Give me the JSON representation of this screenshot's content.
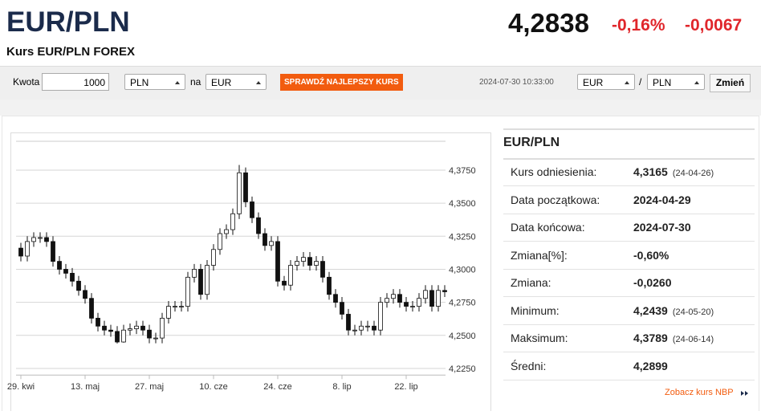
{
  "header": {
    "title": "EUR/PLN",
    "subtitle": "Kurs EUR/PLN FOREX",
    "price": "4,2838",
    "change_pct": "-0,16%",
    "change": "-0,0067"
  },
  "form": {
    "amount_label": "Kwota",
    "amount": "1000",
    "from": "PLN",
    "to_label": "na",
    "to": "EUR",
    "button": "SPRAWDŹ NAJLEPSZY KURS",
    "timestamp": "2024-07-30 10:33:00",
    "pair_base": "EUR",
    "pair_sep": "/",
    "pair_quote": "PLN",
    "change_button": "Zmień"
  },
  "stats": {
    "title": "EUR/PLN",
    "rows": [
      {
        "label": "Kurs odniesienia:",
        "value": "4,3165",
        "date": "(24-04-26)"
      },
      {
        "label": "Data początkowa:",
        "value": "2024-04-29"
      },
      {
        "label": "Data końcowa:",
        "value": "2024-07-30"
      },
      {
        "label": "Zmiana[%]:",
        "value": "-0,60%"
      },
      {
        "label": "Zmiana:",
        "value": "-0,0260"
      },
      {
        "label": "Minimum:",
        "value": "4,2439",
        "date": "(24-05-20)"
      },
      {
        "label": "Maksimum:",
        "value": "4,3789",
        "date": "(24-06-14)"
      },
      {
        "label": "Średni:",
        "value": "4,2899"
      }
    ],
    "link": "Zobacz kurs NBP"
  },
  "chart_data": {
    "type": "candlestick",
    "categories": [
      "29. kwi",
      null,
      null,
      null,
      null,
      null,
      null,
      null,
      null,
      null,
      "13. maj",
      null,
      null,
      null,
      null,
      null,
      null,
      null,
      null,
      null,
      "27. maj",
      null,
      null,
      null,
      null,
      null,
      null,
      null,
      null,
      null,
      "10. cze",
      null,
      null,
      null,
      null,
      null,
      null,
      null,
      null,
      null,
      "24. cze",
      null,
      null,
      null,
      null,
      null,
      null,
      null,
      null,
      null,
      "8. lip",
      null,
      null,
      null,
      null,
      null,
      null,
      null,
      null,
      null,
      "22. lip",
      null,
      null,
      null,
      null,
      null,
      null
    ],
    "open": [
      4.316,
      4.31,
      4.321,
      4.324,
      4.324,
      4.321,
      4.306,
      4.3,
      4.297,
      4.291,
      4.284,
      4.278,
      4.263,
      4.257,
      4.254,
      4.253,
      4.245,
      4.254,
      4.255,
      4.257,
      4.254,
      4.248,
      4.248,
      4.263,
      4.272,
      4.272,
      4.272,
      4.294,
      4.3,
      4.281,
      4.303,
      4.315,
      4.327,
      4.33,
      4.342,
      4.373,
      4.351,
      4.339,
      4.327,
      4.318,
      4.321,
      4.291,
      4.288,
      4.303,
      4.306,
      4.309,
      4.303,
      4.306,
      4.294,
      4.281,
      4.275,
      4.266,
      4.254,
      4.254,
      4.257,
      4.257,
      4.254,
      4.275,
      4.278,
      4.281,
      4.275,
      4.272,
      4.272,
      4.278,
      4.284,
      4.272,
      4.284
    ],
    "high": [
      4.32,
      4.325,
      4.328,
      4.328,
      4.328,
      4.325,
      4.31,
      4.304,
      4.301,
      4.295,
      4.288,
      4.282,
      4.267,
      4.261,
      4.258,
      4.257,
      4.258,
      4.259,
      4.261,
      4.261,
      4.258,
      4.252,
      4.267,
      4.276,
      4.276,
      4.276,
      4.298,
      4.304,
      4.304,
      4.307,
      4.319,
      4.331,
      4.334,
      4.346,
      4.3789,
      4.377,
      4.355,
      4.343,
      4.331,
      4.325,
      4.325,
      4.295,
      4.307,
      4.31,
      4.313,
      4.313,
      4.31,
      4.31,
      4.298,
      4.285,
      4.279,
      4.27,
      4.258,
      4.261,
      4.261,
      4.261,
      4.279,
      4.282,
      4.285,
      4.285,
      4.279,
      4.276,
      4.282,
      4.288,
      4.288,
      4.288,
      4.288
    ],
    "low": [
      4.306,
      4.306,
      4.317,
      4.32,
      4.317,
      4.302,
      4.296,
      4.293,
      4.287,
      4.28,
      4.274,
      4.259,
      4.253,
      4.25,
      4.249,
      4.2439,
      4.2445,
      4.25,
      4.251,
      4.25,
      4.244,
      4.244,
      4.244,
      4.259,
      4.268,
      4.268,
      4.268,
      4.29,
      4.277,
      4.277,
      4.299,
      4.311,
      4.323,
      4.326,
      4.338,
      4.347,
      4.335,
      4.323,
      4.314,
      4.314,
      4.287,
      4.284,
      4.284,
      4.299,
      4.302,
      4.299,
      4.299,
      4.29,
      4.277,
      4.271,
      4.262,
      4.25,
      4.25,
      4.25,
      4.253,
      4.25,
      4.25,
      4.271,
      4.274,
      4.271,
      4.268,
      4.268,
      4.268,
      4.274,
      4.268,
      4.268,
      4.279
    ],
    "close": [
      4.31,
      4.321,
      4.324,
      4.324,
      4.321,
      4.306,
      4.3,
      4.297,
      4.291,
      4.284,
      4.278,
      4.263,
      4.257,
      4.254,
      4.253,
      4.245,
      4.254,
      4.255,
      4.257,
      4.254,
      4.248,
      4.248,
      4.263,
      4.272,
      4.272,
      4.272,
      4.294,
      4.3,
      4.281,
      4.303,
      4.315,
      4.327,
      4.33,
      4.342,
      4.373,
      4.351,
      4.339,
      4.327,
      4.318,
      4.321,
      4.291,
      4.288,
      4.303,
      4.306,
      4.309,
      4.303,
      4.306,
      4.294,
      4.281,
      4.275,
      4.266,
      4.254,
      4.254,
      4.257,
      4.257,
      4.254,
      4.275,
      4.278,
      4.281,
      4.275,
      4.272,
      4.272,
      4.278,
      4.284,
      4.272,
      4.284,
      4.283
    ],
    "ylim": [
      4.22,
      4.4
    ],
    "yticks": [
      {
        "value": 4.225,
        "label": "4,2250"
      },
      {
        "value": 4.25,
        "label": "4,2500"
      },
      {
        "value": 4.275,
        "label": "4,2750"
      },
      {
        "value": 4.3,
        "label": "4,3000"
      },
      {
        "value": 4.325,
        "label": "4,3250"
      },
      {
        "value": 4.35,
        "label": "4,3500"
      },
      {
        "value": 4.375,
        "label": "4,3750"
      }
    ],
    "grid": true,
    "up_color": "#ffffff",
    "down_color": "#111111"
  }
}
